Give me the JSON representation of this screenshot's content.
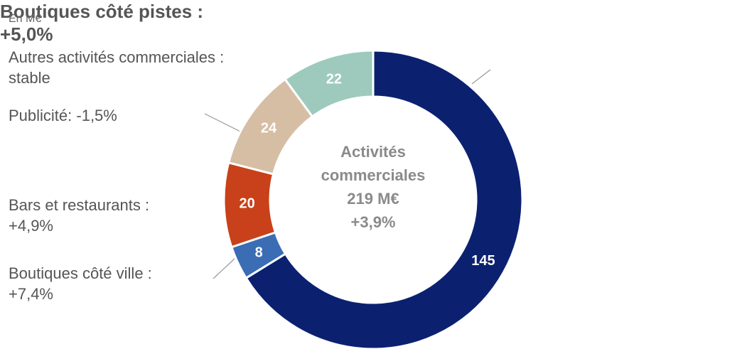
{
  "chart_data": {
    "type": "donut",
    "subtitle": "En M€",
    "categories": [
      "Boutiques côté pistes : +5,0%",
      "Boutiques côté ville : +7,4%",
      "Bars et restaurants : +4,9%",
      "Publicité: -1,5%",
      "Autres activités commerciales : stable"
    ],
    "values": [
      145,
      8,
      20,
      24,
      22
    ],
    "colors": [
      "#0b2170",
      "#3b6db5",
      "#c8411a",
      "#d6bea4",
      "#9dcabd"
    ],
    "center_text": [
      "Activités",
      "commerciales",
      "219 M€",
      "+3,9%"
    ]
  }
}
